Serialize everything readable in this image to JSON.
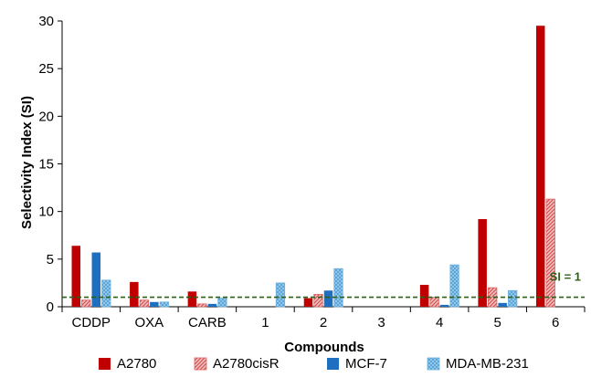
{
  "chart_data": {
    "type": "bar",
    "title": "",
    "xlabel": "Compounds",
    "ylabel": "Selectivity Index (SI)",
    "ylim": [
      0,
      30
    ],
    "yticks": [
      0,
      5,
      10,
      15,
      20,
      25,
      30
    ],
    "categories": [
      "CDDP",
      "OXA",
      "CARB",
      "1",
      "2",
      "3",
      "4",
      "5",
      "6"
    ],
    "series": [
      {
        "name": "A2780",
        "color": "#c00000",
        "pattern": "solid",
        "values": [
          6.4,
          2.6,
          1.6,
          0,
          0.9,
          0,
          2.3,
          9.2,
          29.5
        ]
      },
      {
        "name": "A2780cisR",
        "color": "#e06060",
        "pattern": "hatch",
        "values": [
          0.7,
          0.7,
          0.3,
          0,
          1.3,
          0,
          1.0,
          2.0,
          11.3
        ]
      },
      {
        "name": "MCF-7",
        "color": "#1f6fc0",
        "pattern": "solid",
        "values": [
          5.7,
          0.5,
          0.3,
          0,
          1.7,
          0,
          0.2,
          0.4,
          0
        ]
      },
      {
        "name": "MDA-MB-231",
        "color": "#6fb3e0",
        "pattern": "dots",
        "values": [
          2.8,
          0.5,
          0.9,
          2.5,
          4.0,
          0,
          4.4,
          1.7,
          0
        ]
      }
    ],
    "reference_line": {
      "value": 1,
      "label": "SI = 1",
      "color": "#2e5e1a"
    },
    "legend_position": "bottom",
    "grid": false
  }
}
